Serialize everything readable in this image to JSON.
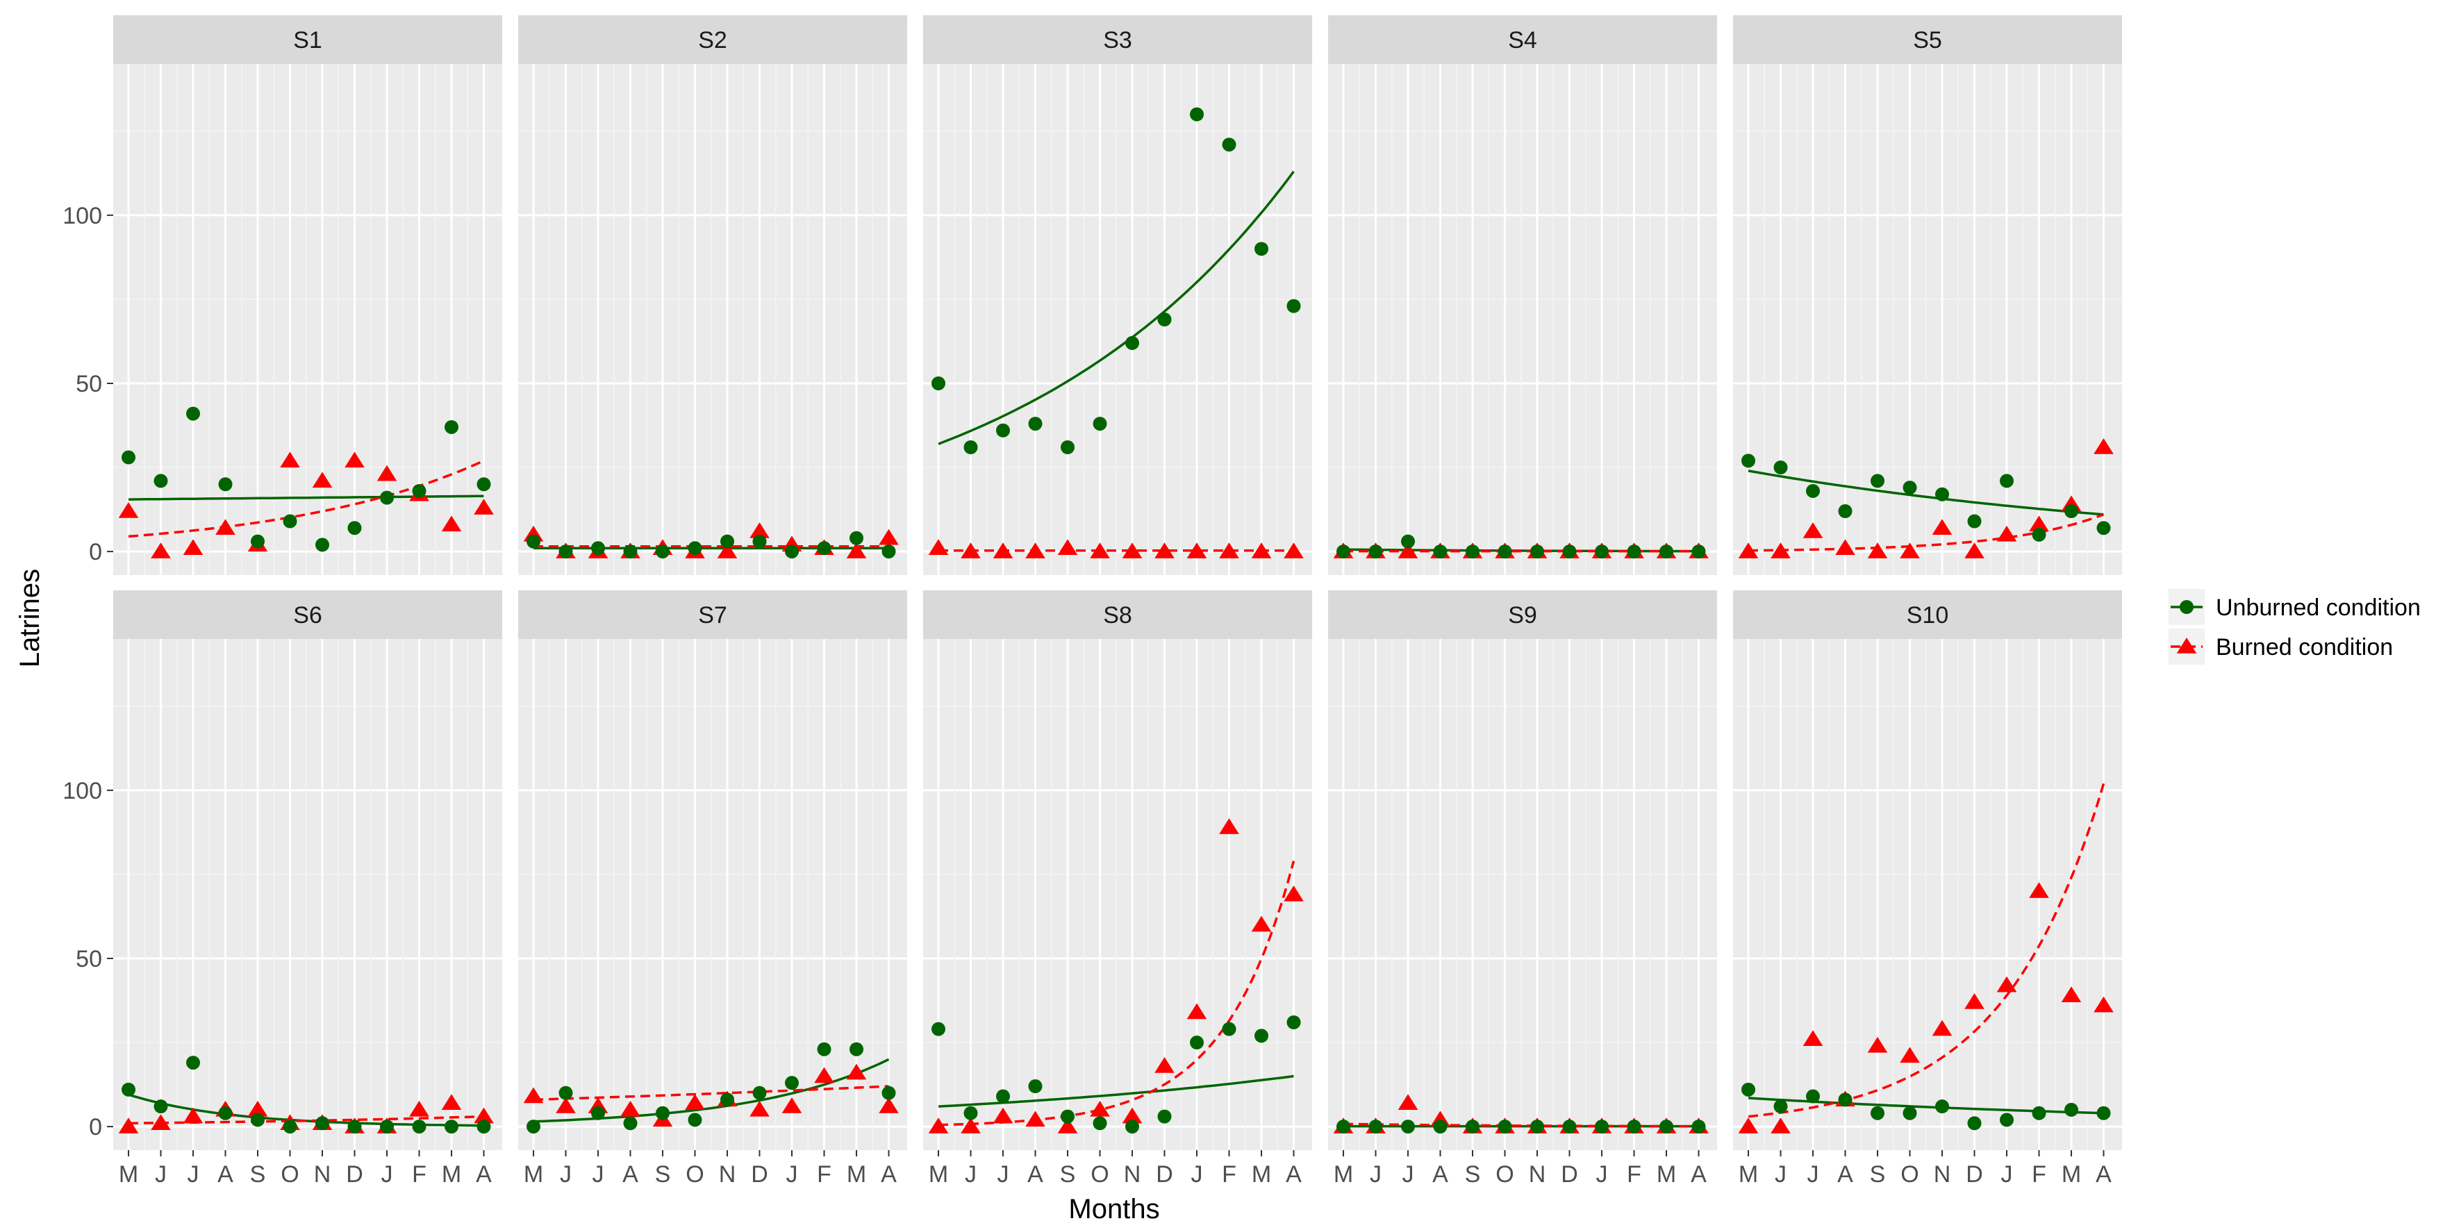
{
  "chart_data": {
    "type": "scatter",
    "facet_layout": "2x5",
    "xlabel": "Months",
    "ylabel": "Latrines",
    "x_ticks": [
      "M",
      "J",
      "J",
      "A",
      "S",
      "O",
      "N",
      "D",
      "J",
      "F",
      "M",
      "A"
    ],
    "y_ticks": [
      0,
      50,
      100
    ],
    "ylim": [
      -7,
      145
    ],
    "grid": true,
    "legend_position": "right",
    "series": [
      {
        "name": "Unburned condition",
        "color": "#006400",
        "marker": "circle",
        "fit_line": "solid"
      },
      {
        "name": "Burned condition",
        "color": "#ff0000",
        "marker": "triangle",
        "fit_line": "dashed"
      }
    ],
    "panels": [
      {
        "label": "S1",
        "unburned": [
          28,
          21,
          41,
          20,
          3,
          9,
          2,
          7,
          16,
          18,
          37,
          20
        ],
        "burned": [
          12,
          0,
          1,
          7,
          2,
          27,
          21,
          27,
          23,
          17,
          8,
          13
        ],
        "fit_unburned": [
          15.5,
          16.5
        ],
        "fit_burned": [
          4.5,
          27
        ]
      },
      {
        "label": "S2",
        "unburned": [
          3,
          0,
          1,
          0,
          0,
          1,
          3,
          3,
          0,
          1,
          4,
          0
        ],
        "burned": [
          5,
          0,
          0,
          0,
          1,
          0,
          0,
          6,
          2,
          1,
          0,
          4
        ],
        "fit_unburned": [
          1,
          1
        ],
        "fit_burned": [
          1.5,
          1.5
        ]
      },
      {
        "label": "S3",
        "unburned": [
          50,
          31,
          36,
          38,
          31,
          38,
          62,
          69,
          130,
          121,
          90,
          73
        ],
        "burned": [
          1,
          0,
          0,
          0,
          1,
          0,
          0,
          0,
          0,
          0,
          0,
          0
        ],
        "fit_unburned": [
          32,
          113
        ],
        "fit_burned": [
          0.3,
          0.3
        ]
      },
      {
        "label": "S4",
        "unburned": [
          0,
          0,
          3,
          0,
          0,
          0,
          0,
          0,
          0,
          0,
          0,
          0
        ],
        "burned": [
          0,
          0,
          0,
          0,
          0,
          0,
          0,
          0,
          0,
          0,
          0,
          0
        ],
        "fit_unburned": [
          0.6,
          0.1
        ],
        "fit_burned": [
          0.1,
          0.1
        ]
      },
      {
        "label": "S5",
        "unburned": [
          27,
          25,
          18,
          12,
          21,
          19,
          17,
          9,
          21,
          5,
          12,
          7
        ],
        "burned": [
          0,
          0,
          6,
          1,
          0,
          0,
          7,
          0,
          5,
          8,
          14,
          31
        ],
        "fit_unburned": [
          24,
          11
        ],
        "fit_burned": [
          0.3,
          11
        ]
      },
      {
        "label": "S6",
        "unburned": [
          11,
          6,
          19,
          4,
          2,
          0,
          1,
          0,
          0,
          0,
          0,
          0
        ],
        "burned": [
          0,
          1,
          3,
          5,
          5,
          1,
          1,
          0,
          0,
          5,
          7,
          3
        ],
        "fit_unburned": [
          9.5,
          0.3
        ],
        "fit_burned": [
          1,
          3
        ]
      },
      {
        "label": "S7",
        "unburned": [
          0,
          10,
          4,
          1,
          4,
          2,
          8,
          10,
          13,
          23,
          23,
          10
        ],
        "burned": [
          9,
          6,
          6,
          5,
          2,
          7,
          8,
          5,
          6,
          15,
          16,
          6
        ],
        "fit_unburned": [
          1.5,
          20
        ],
        "fit_burned": [
          8,
          12
        ]
      },
      {
        "label": "S8",
        "unburned": [
          29,
          4,
          9,
          12,
          3,
          1,
          0,
          3,
          25,
          29,
          27,
          31
        ],
        "burned": [
          0,
          0,
          3,
          2,
          0,
          5,
          3,
          18,
          34,
          89,
          60,
          69
        ],
        "fit_unburned": [
          6,
          15
        ],
        "fit_burned": [
          0.5,
          79
        ]
      },
      {
        "label": "S9",
        "unburned": [
          0,
          0,
          0,
          0,
          0,
          0,
          0,
          0,
          0,
          0,
          0,
          0
        ],
        "burned": [
          0,
          0,
          7,
          2,
          0,
          0,
          0,
          0,
          0,
          0,
          0,
          0
        ],
        "fit_unburned": [
          0.1,
          0.1
        ],
        "fit_burned": [
          0.8,
          0.1
        ]
      },
      {
        "label": "S10",
        "unburned": [
          11,
          6,
          9,
          8,
          4,
          4,
          6,
          1,
          2,
          4,
          5,
          4
        ],
        "burned": [
          0,
          0,
          26,
          8,
          24,
          21,
          29,
          37,
          42,
          70,
          39,
          36
        ],
        "fit_unburned": [
          8.5,
          4
        ],
        "fit_burned": [
          3,
          102
        ]
      }
    ]
  }
}
